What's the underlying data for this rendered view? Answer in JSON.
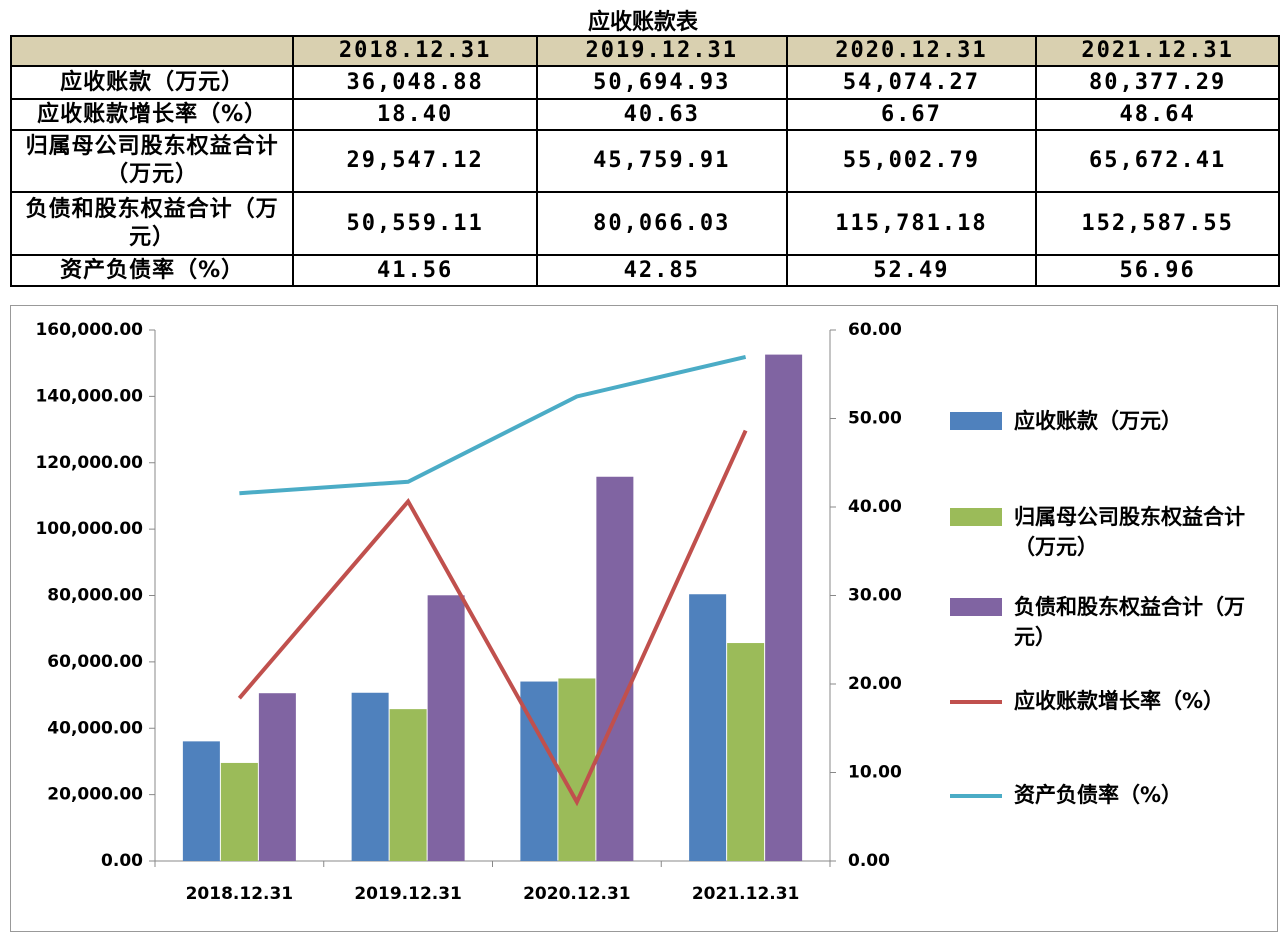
{
  "table": {
    "title": "应收账款表",
    "columns": [
      "2018.12.31",
      "2019.12.31",
      "2020.12.31",
      "2021.12.31"
    ],
    "rows": [
      {
        "label": "应收账款（万元）",
        "cells": [
          "36,048.88",
          "50,694.93",
          "54,074.27",
          "80,377.29"
        ]
      },
      {
        "label": "应收账款增长率（%）",
        "cells": [
          "18.40",
          "40.63",
          "6.67",
          "48.64"
        ]
      },
      {
        "label": "归属母公司股东权益合计（万元）",
        "cells": [
          "29,547.12",
          "45,759.91",
          "55,002.79",
          "65,672.41"
        ]
      },
      {
        "label": "负债和股东权益合计（万元）",
        "cells": [
          "50,559.11",
          "80,066.03",
          "115,781.18",
          "152,587.55"
        ]
      },
      {
        "label": "资产负债率（%）",
        "cells": [
          "41.56",
          "42.85",
          "52.49",
          "56.96"
        ]
      }
    ]
  },
  "chart_data": {
    "type": "bar",
    "categories": [
      "2018.12.31",
      "2019.12.31",
      "2020.12.31",
      "2021.12.31"
    ],
    "series": [
      {
        "name": "应收账款（万元）",
        "type": "bar",
        "color": "#4f81bd",
        "values": [
          36048.88,
          50694.93,
          54074.27,
          80377.29
        ]
      },
      {
        "name": "归属母公司股东权益合计（万元）",
        "type": "bar",
        "color": "#9bbb59",
        "values": [
          29547.12,
          45759.91,
          55002.79,
          65672.41
        ]
      },
      {
        "name": "负债和股东权益合计（万元）",
        "type": "bar",
        "color": "#8064a2",
        "values": [
          50559.11,
          80066.03,
          115781.18,
          152587.55
        ]
      },
      {
        "name": "应收账款增长率（%）",
        "type": "line",
        "axis": "y2",
        "color": "#c0504d",
        "values": [
          18.4,
          40.63,
          6.67,
          48.64
        ]
      },
      {
        "name": "资产负债率（%）",
        "type": "line",
        "axis": "y2",
        "color": "#4bacc6",
        "values": [
          41.56,
          42.85,
          52.49,
          56.96
        ]
      }
    ],
    "ylim": [
      0,
      160000
    ],
    "yticks": [
      {
        "value": 0,
        "label": "0.00"
      },
      {
        "value": 20000,
        "label": "20,000.00"
      },
      {
        "value": 40000,
        "label": "40,000.00"
      },
      {
        "value": 60000,
        "label": "60,000.00"
      },
      {
        "value": 80000,
        "label": "80,000.00"
      },
      {
        "value": 100000,
        "label": "100,000.00"
      },
      {
        "value": 120000,
        "label": "120,000.00"
      },
      {
        "value": 140000,
        "label": "140,000.00"
      },
      {
        "value": 160000,
        "label": "160,000.00"
      }
    ],
    "y2lim": [
      0,
      60
    ],
    "y2ticks": [
      {
        "value": 0,
        "label": "0.00"
      },
      {
        "value": 10,
        "label": "10.00"
      },
      {
        "value": 20,
        "label": "20.00"
      },
      {
        "value": 30,
        "label": "30.00"
      },
      {
        "value": 40,
        "label": "40.00"
      },
      {
        "value": 50,
        "label": "50.00"
      },
      {
        "value": 60,
        "label": "60.00"
      }
    ],
    "legend": "right"
  }
}
